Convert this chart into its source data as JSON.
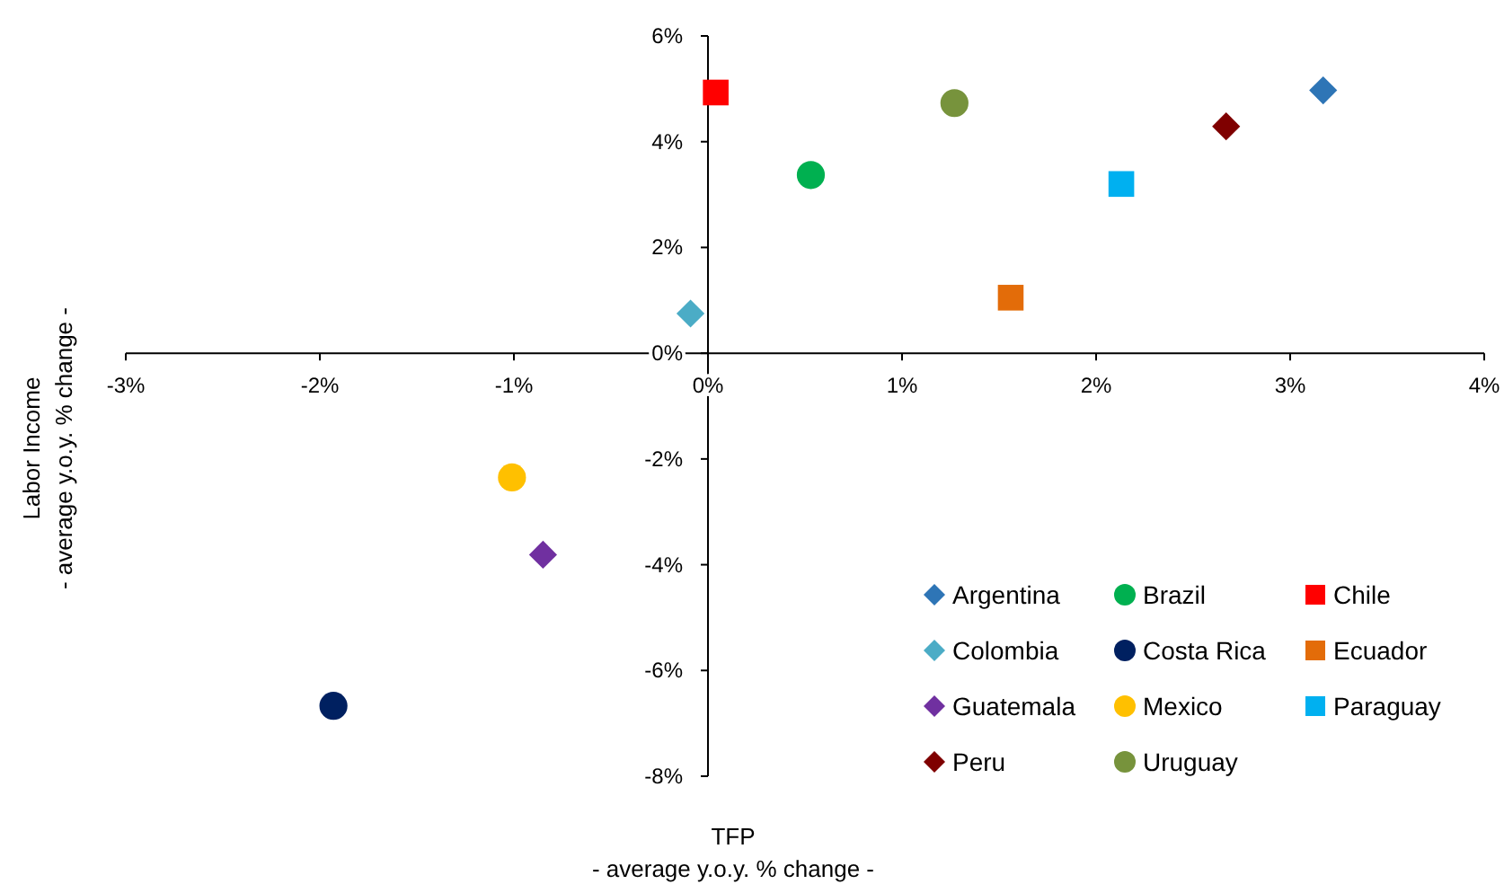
{
  "chart_data": {
    "type": "scatter",
    "xlabel": "TFP\n- average y.o.y. % change -",
    "ylabel": "Labor Income\n- average y.o.y. % change -",
    "xlim": [
      -3,
      4
    ],
    "xticks": [
      {
        "value": -3,
        "label": "-3%"
      },
      {
        "value": -2,
        "label": "-2%"
      },
      {
        "value": -1,
        "label": "-1%"
      },
      {
        "value": 0,
        "label": "0%"
      },
      {
        "value": 1,
        "label": "1%"
      },
      {
        "value": 2,
        "label": "2%"
      },
      {
        "value": 3,
        "label": "3%"
      },
      {
        "value": 4,
        "label": "4%"
      }
    ],
    "ylim": [
      -8,
      6
    ],
    "yticks": [
      {
        "value": -8,
        "label": "-8%"
      },
      {
        "value": -6,
        "label": "-6%"
      },
      {
        "value": -4,
        "label": "-4%"
      },
      {
        "value": -2,
        "label": "-2%"
      },
      {
        "value": 0,
        "label": "0%"
      },
      {
        "value": 2,
        "label": "2%"
      },
      {
        "value": 4,
        "label": "4%"
      },
      {
        "value": 6,
        "label": "6%"
      }
    ],
    "grid": false,
    "legend": "bottom right",
    "series": [
      {
        "name": "Argentina",
        "color": "#2e75b6",
        "marker": "diamond",
        "x": [
          3.17
        ],
        "values": [
          4.97
        ]
      },
      {
        "name": "Brazil",
        "color": "#00b050",
        "marker": "circle",
        "x": [
          0.53
        ],
        "values": [
          3.37
        ]
      },
      {
        "name": "Chile",
        "color": "#ff0000",
        "marker": "square",
        "x": [
          0.04
        ],
        "values": [
          4.93
        ]
      },
      {
        "name": "Colombia",
        "color": "#4bacc6",
        "marker": "diamond",
        "x": [
          -0.09
        ],
        "values": [
          0.75
        ]
      },
      {
        "name": "Costa Rica",
        "color": "#002060",
        "marker": "circle",
        "x": [
          -1.93
        ],
        "values": [
          -6.67
        ]
      },
      {
        "name": "Ecuador",
        "color": "#e36c09",
        "marker": "square",
        "x": [
          1.56
        ],
        "values": [
          1.05
        ]
      },
      {
        "name": "Guatemala",
        "color": "#7030a0",
        "marker": "diamond",
        "x": [
          -0.85
        ],
        "values": [
          -3.81
        ]
      },
      {
        "name": "Mexico",
        "color": "#ffc000",
        "marker": "circle",
        "x": [
          -1.01
        ],
        "values": [
          -2.35
        ]
      },
      {
        "name": "Paraguay",
        "color": "#00b0f0",
        "marker": "square",
        "x": [
          2.13
        ],
        "values": [
          3.2
        ]
      },
      {
        "name": "Peru",
        "color": "#7f0000",
        "marker": "diamond",
        "x": [
          2.67
        ],
        "values": [
          4.29
        ]
      },
      {
        "name": "Uruguay",
        "color": "#77933c",
        "marker": "circle",
        "x": [
          1.27
        ],
        "values": [
          4.73
        ]
      }
    ]
  }
}
